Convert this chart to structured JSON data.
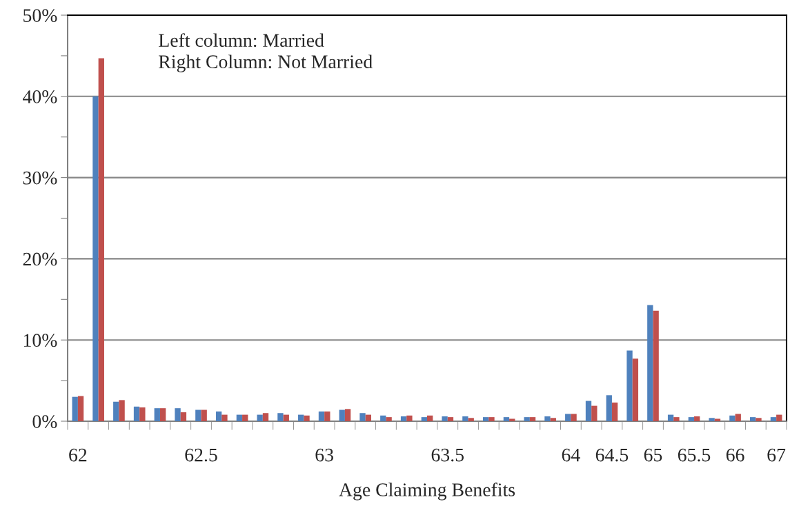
{
  "chart_data": {
    "type": "bar",
    "xlabel": "Age Claiming Benefits",
    "categories": [
      "62",
      null,
      null,
      null,
      null,
      null,
      "62.5",
      null,
      null,
      null,
      null,
      null,
      "63",
      null,
      null,
      null,
      null,
      null,
      "63.5",
      null,
      null,
      null,
      null,
      null,
      "64",
      null,
      "64.5",
      null,
      "65",
      null,
      "65.5",
      null,
      "66",
      null,
      "67"
    ],
    "series": [
      {
        "color": "#4f81bd",
        "values": [
          3.0,
          40.0,
          2.4,
          1.8,
          1.6,
          1.6,
          1.4,
          1.2,
          0.8,
          0.8,
          1.0,
          0.8,
          1.2,
          1.4,
          1.0,
          0.7,
          0.6,
          0.5,
          0.6,
          0.6,
          0.5,
          0.5,
          0.5,
          0.6,
          0.9,
          2.5,
          3.2,
          8.7,
          14.3,
          0.8,
          0.5,
          0.4,
          0.7,
          0.5,
          0.5
        ]
      },
      {
        "color": "#c0504d",
        "values": [
          3.1,
          44.7,
          2.6,
          1.7,
          1.6,
          1.1,
          1.4,
          0.8,
          0.8,
          1.0,
          0.8,
          0.7,
          1.2,
          1.5,
          0.8,
          0.5,
          0.7,
          0.7,
          0.5,
          0.4,
          0.5,
          0.3,
          0.5,
          0.4,
          0.9,
          1.9,
          2.3,
          7.7,
          13.6,
          0.5,
          0.6,
          0.3,
          0.9,
          0.4,
          0.8
        ]
      }
    ],
    "ylim": [
      0,
      50
    ],
    "yticks": [
      {
        "value": 0,
        "label": "0%"
      },
      {
        "value": 5,
        "label": null
      },
      {
        "value": 10,
        "label": "10%"
      },
      {
        "value": 15,
        "label": null
      },
      {
        "value": 20,
        "label": "20%"
      },
      {
        "value": 25,
        "label": null
      },
      {
        "value": 30,
        "label": "30%"
      },
      {
        "value": 35,
        "label": null
      },
      {
        "value": 40,
        "label": "40%"
      },
      {
        "value": 45,
        "label": null
      },
      {
        "value": 50,
        "label": "50%"
      }
    ],
    "grid": "y",
    "legend": false,
    "annotations": [
      "Left column: Married\nRight Column: Not Married"
    ]
  }
}
